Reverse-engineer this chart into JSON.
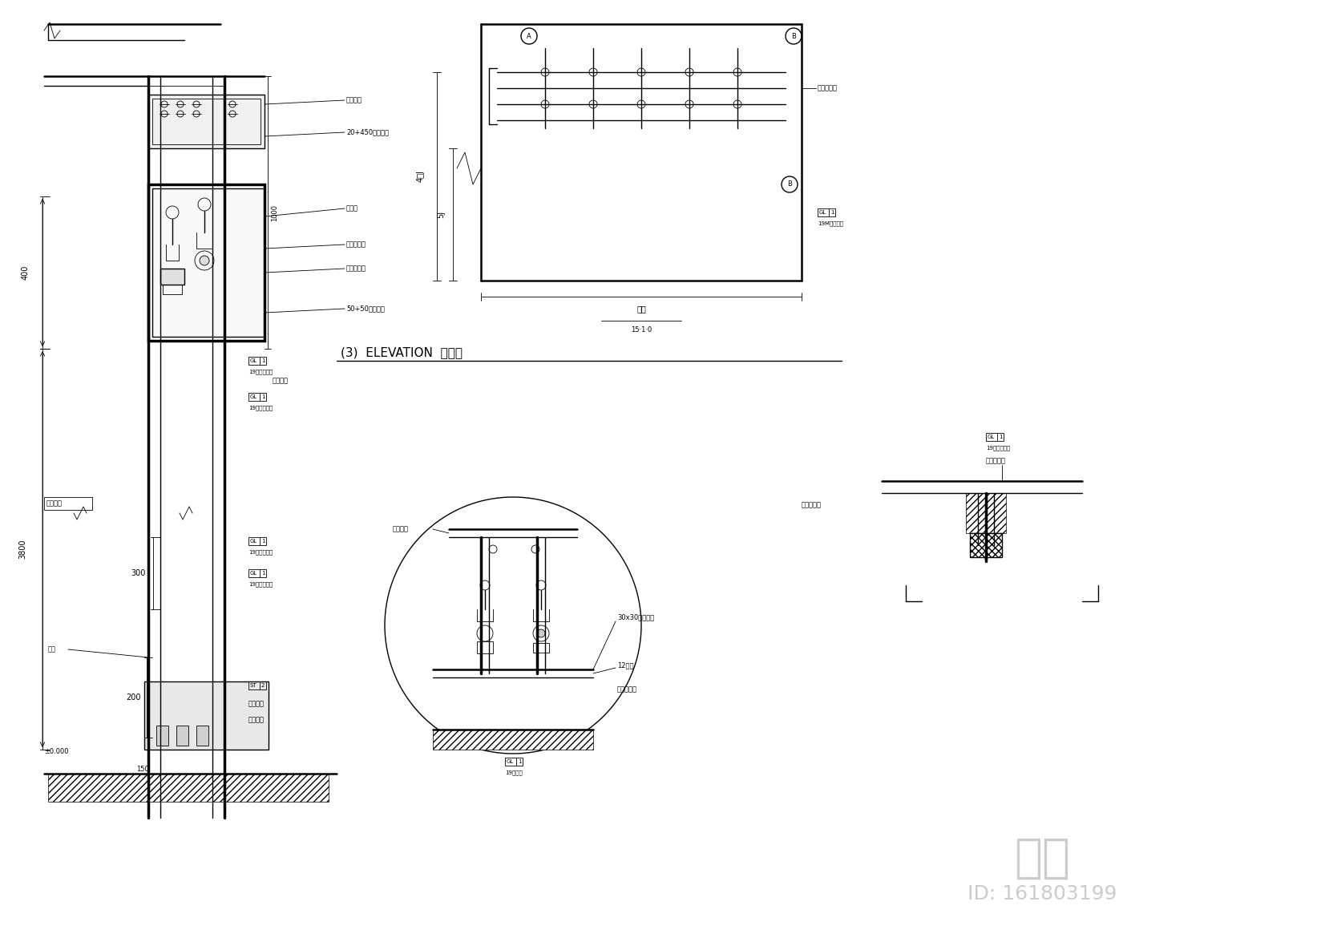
{
  "bg_color": "#ffffff",
  "line_color": "#000000",
  "light_gray": "#aaaaaa",
  "medium_gray": "#888888",
  "title": "知未",
  "id_text": "ID: 161803199",
  "elevation_label": "(3)  ELEVATION  立面图",
  "watermark_color": "#cccccc"
}
